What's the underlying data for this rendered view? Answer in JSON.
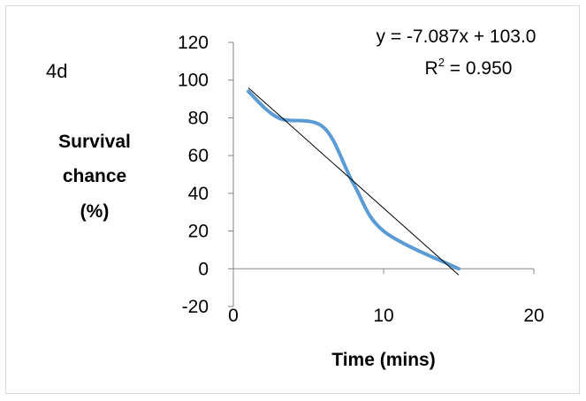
{
  "chart_data": {
    "type": "line",
    "panel_label": "4d",
    "xlabel": "Time (mins)",
    "ylabel_lines": [
      "Survival",
      "chance",
      "(%)"
    ],
    "xlim": [
      0,
      20
    ],
    "ylim": [
      -20,
      120
    ],
    "x_ticks": [
      0,
      10,
      20
    ],
    "y_ticks": [
      -20,
      0,
      20,
      40,
      60,
      80,
      100,
      120
    ],
    "grid": false,
    "series": [
      {
        "color": "#5b9bd5",
        "smooth": true,
        "points": [
          [
            1,
            94
          ],
          [
            3,
            80
          ],
          [
            6,
            75
          ],
          [
            8,
            45
          ],
          [
            10,
            20
          ],
          [
            15,
            0
          ]
        ]
      }
    ],
    "trendline": {
      "type": "linear",
      "slope": -7.087,
      "intercept": 103.0,
      "x_range": [
        1,
        15
      ],
      "color": "#000000"
    },
    "annotations": {
      "equation": "y = -7.087x + 103.0",
      "r_squared_prefix": "R",
      "r_squared_sup": "2",
      "r_squared_suffix": " = 0.950"
    }
  }
}
